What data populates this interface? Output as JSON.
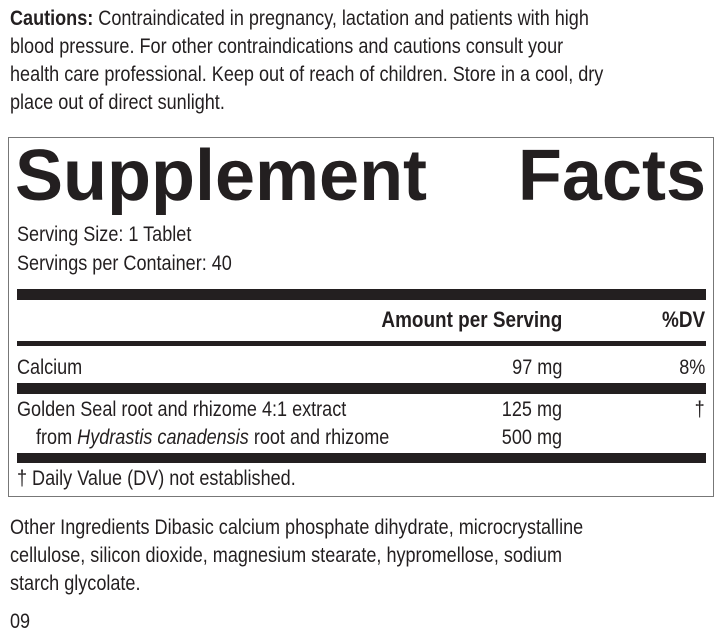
{
  "cautions": {
    "label": "Cautions:",
    "lines": [
      " Contraindicated in pregnancy, lactation and patients with high",
      "blood pressure. For other contraindications and cautions consult your",
      "health care professional. Keep out of reach of children. Store in a cool, dry",
      "place out of direct sunlight."
    ]
  },
  "facts": {
    "title_left": "Supplement",
    "title_right": "Facts",
    "serving_size": "Serving Size: 1 Tablet",
    "servings_per_container": "Servings per Container: 40",
    "header_amount": "Amount per Serving",
    "header_dv": "%DV",
    "rows": [
      {
        "name": "Calcium",
        "amount": "97 mg",
        "dv": "8%"
      },
      {
        "name": "Golden Seal root and rhizome 4:1 extract",
        "amount": "125 mg",
        "dv": "†",
        "sub_prefix": "from ",
        "sub_italic": "Hydrastis canadensis",
        "sub_suffix": " root and rhizome",
        "sub_amount": "500 mg"
      }
    ],
    "footnote": "† Daily Value (DV) not established."
  },
  "other_ingredients": [
    "Other Ingredients Dibasic calcium phosphate dihydrate, microcrystalline",
    "cellulose, silicon dioxide, magnesium stearate, hypromellose, sodium",
    "starch glycolate."
  ],
  "code": "09"
}
